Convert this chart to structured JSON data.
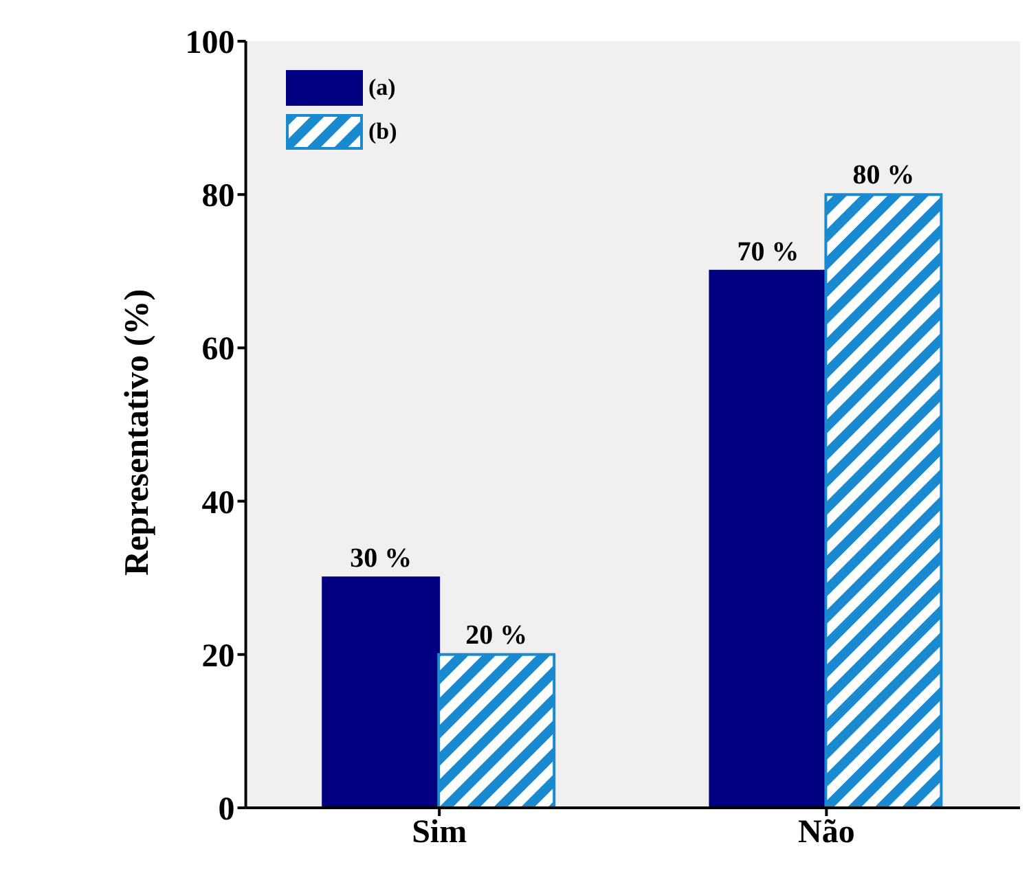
{
  "chart_data": {
    "type": "bar",
    "ylabel": "Representativo (%)",
    "categories": [
      "Sim",
      "Não"
    ],
    "series": [
      {
        "name": "(a)",
        "color": "#000080",
        "values": [
          30,
          70
        ],
        "value_labels": [
          "30 %",
          "70 %"
        ]
      },
      {
        "name": "(b)",
        "color": "#1a8ad0",
        "values": [
          20,
          80
        ],
        "value_labels": [
          "20 %",
          "80 %"
        ]
      }
    ],
    "ylim": [
      0,
      100
    ],
    "yticks": [
      0,
      20,
      40,
      60,
      80,
      100
    ],
    "grid": false,
    "legend": "top left"
  }
}
